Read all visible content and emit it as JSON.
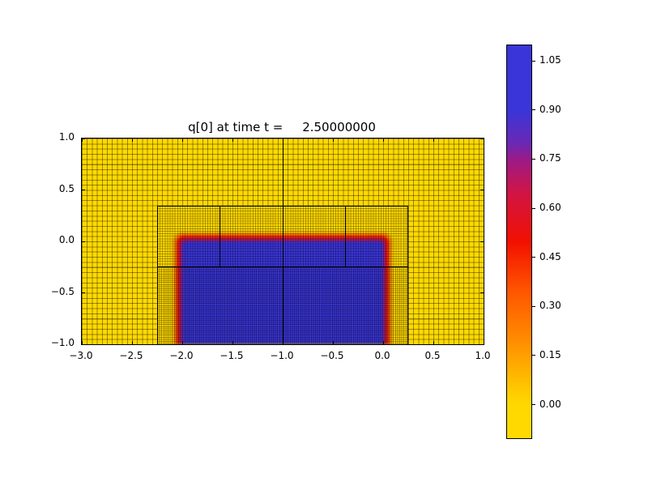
{
  "figure": {
    "background": "#ffffff"
  },
  "chart_data": {
    "type": "heatmap",
    "title": "q[0] at time t =     2.50000000",
    "variable": "q[0]",
    "time": "2.50000000",
    "x_range": [
      -3.0,
      1.0
    ],
    "y_range": [
      -1.0,
      1.0
    ],
    "x_tick_values": [
      -3.0,
      -2.5,
      -2.0,
      -1.5,
      -1.0,
      -0.5,
      0.0,
      0.5,
      1.0
    ],
    "x_tick_labels": [
      "−3.0",
      "−2.5",
      "−2.0",
      "−1.5",
      "−1.0",
      "−0.5",
      "0.0",
      "0.5",
      "1.0"
    ],
    "y_tick_values": [
      1.0,
      0.5,
      0.0,
      -0.5,
      -1.0
    ],
    "y_tick_labels": [
      "1.0",
      "0.5",
      "0.0",
      "−0.5",
      "−1.0"
    ],
    "grid": true,
    "field": {
      "description": "q[0] is approximately 1.05 inside the rectangle x in [-2,0], y in [-1,0] and approximately 0.0 elsewhere, with smooth red/orange transition bands at the edges",
      "inside_value": 1.05,
      "outside_value": 0.0,
      "high_region_x": [
        -2.0,
        0.0
      ],
      "high_region_y": [
        -1.0,
        0.0
      ]
    },
    "amr_patches": {
      "description": "adaptive mesh refinement: coarse grid over full domain, refined patch over lower-center region with finer mesh, finest mesh below horizontal divider",
      "level2_region": {
        "x": [
          -2.25,
          0.25
        ],
        "y": [
          -1.0,
          0.35
        ]
      },
      "vertical_full_x": [
        -1.0
      ],
      "upper_dividers_x": [
        -1.625,
        -0.375
      ],
      "horizontal_divider_y": -0.25
    },
    "colors": {
      "low": "#ffd900",
      "orange": "#ff8c00",
      "mid": "#f21000",
      "purple": "#9c1a86",
      "high": "#3a35d8"
    },
    "colorbar": {
      "colormap": "yellow_red_blue",
      "range": [
        -0.1,
        1.1
      ],
      "tick_values": [
        1.05,
        0.9,
        0.75,
        0.6,
        0.45,
        0.3,
        0.15,
        0.0
      ],
      "tick_labels": [
        "1.05",
        "0.90",
        "0.75",
        "0.60",
        "0.45",
        "0.30",
        "0.15",
        "0.00"
      ],
      "stops": [
        {
          "at": 0.0,
          "color": "#3a35d8"
        },
        {
          "at": 0.167,
          "color": "#3a35d8"
        },
        {
          "at": 0.25,
          "color": "#6b28b4"
        },
        {
          "at": 0.292,
          "color": "#9c1a86"
        },
        {
          "at": 0.375,
          "color": "#d01545"
        },
        {
          "at": 0.5,
          "color": "#f21000"
        },
        {
          "at": 0.625,
          "color": "#ff5500"
        },
        {
          "at": 0.75,
          "color": "#ff8c00"
        },
        {
          "at": 0.875,
          "color": "#ffc800"
        },
        {
          "at": 0.917,
          "color": "#ffd900"
        },
        {
          "at": 1.0,
          "color": "#ffd900"
        }
      ]
    }
  }
}
